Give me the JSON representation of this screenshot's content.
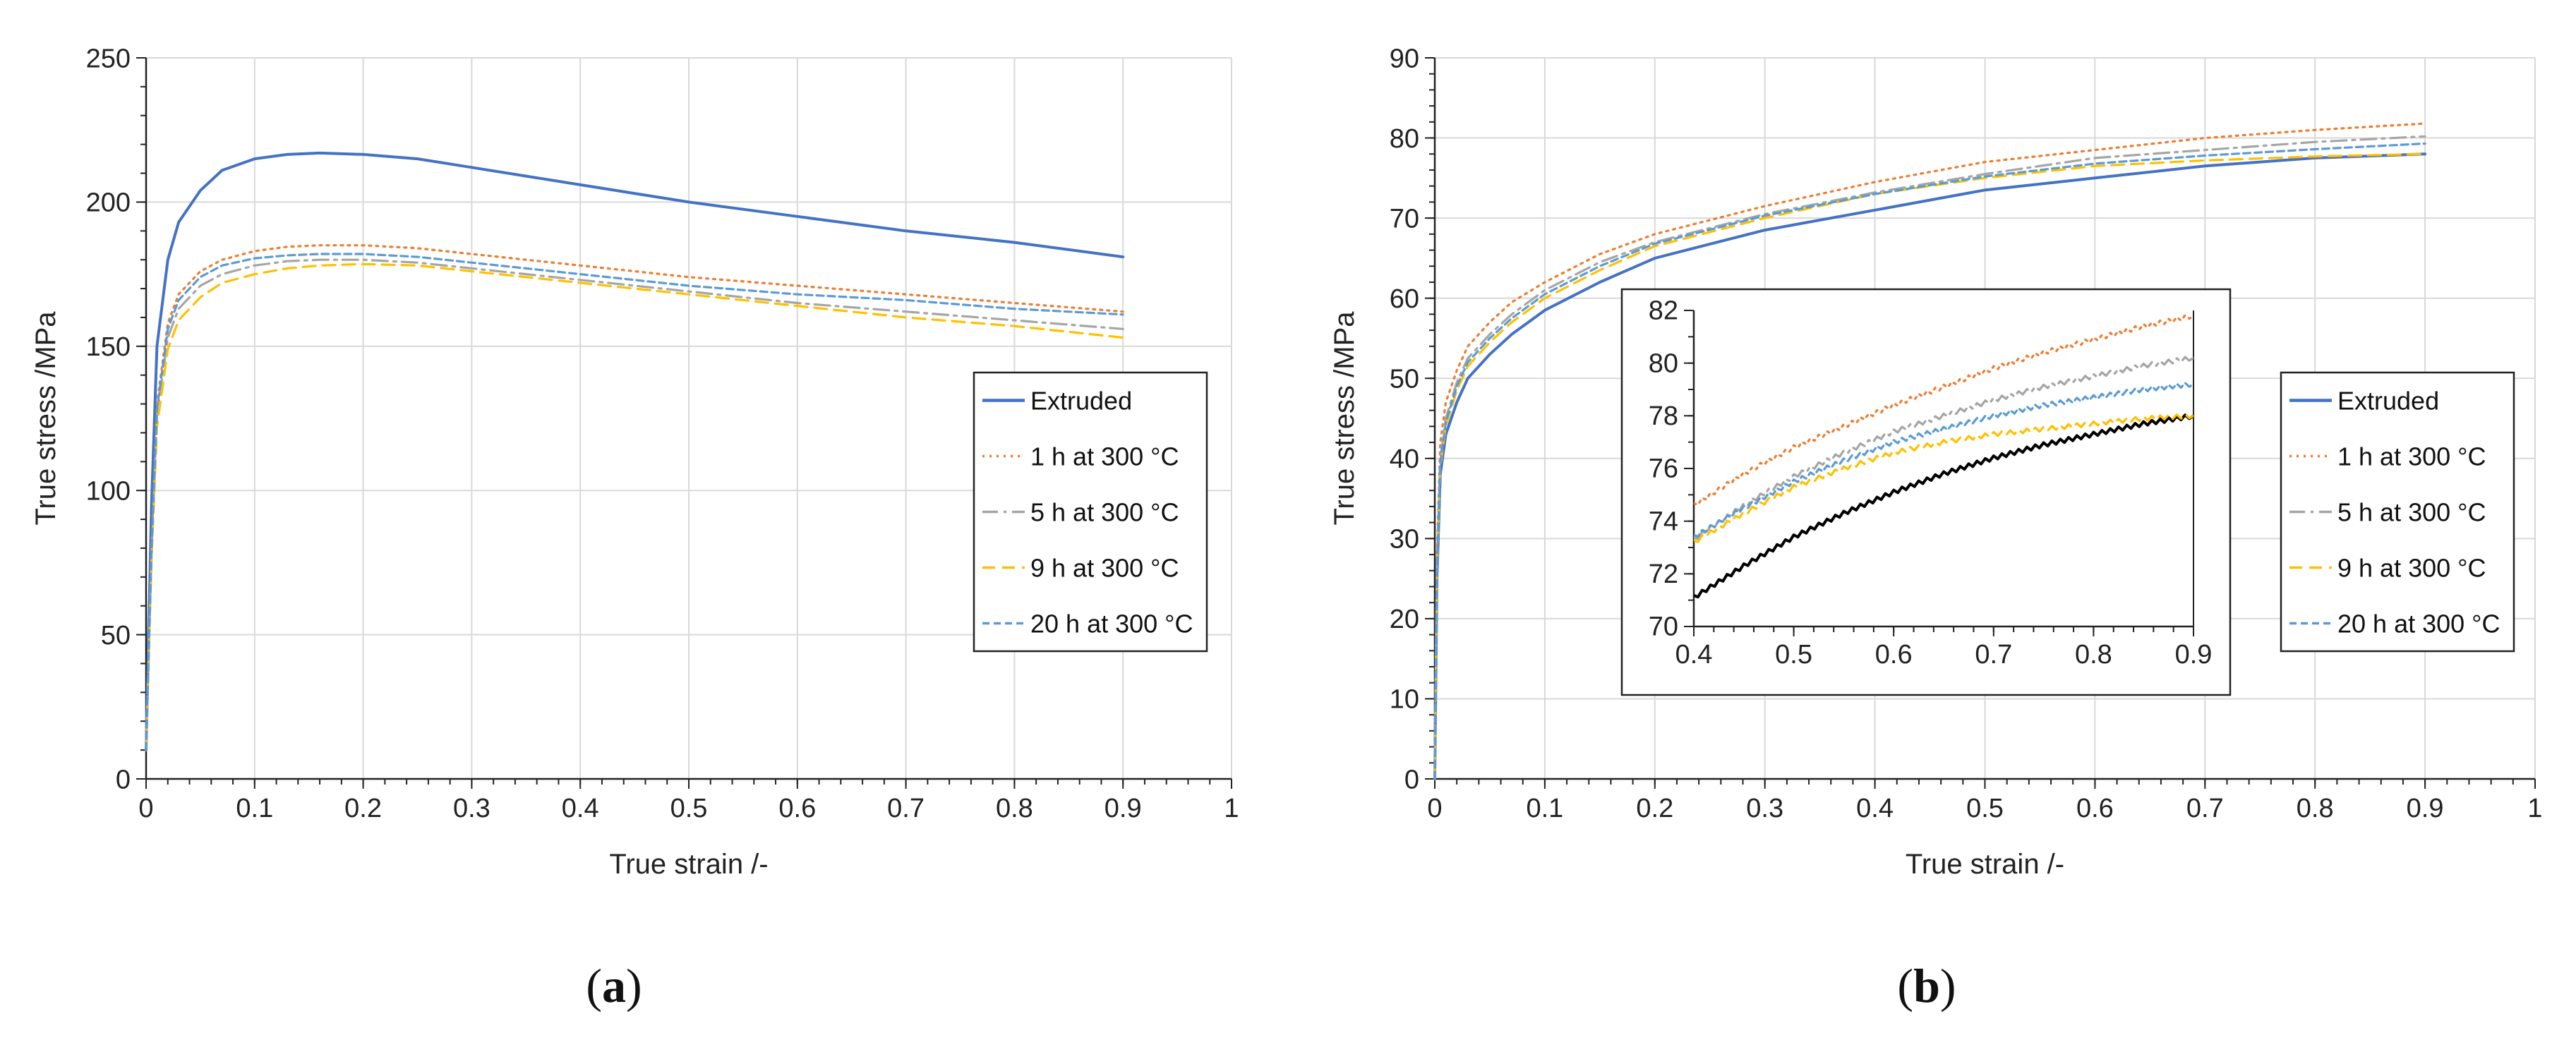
{
  "colors": {
    "extruded": "#4472c4",
    "h1": "#ed7d31",
    "h5": "#a5a5a5",
    "h9": "#ffc000",
    "h20": "#5b9bd5",
    "inset_extruded": "#000000",
    "grid": "#d9d9d9",
    "axis": "#222222"
  },
  "chart_data": [
    {
      "id": "a",
      "type": "line",
      "panel_label": "a",
      "xlabel": "True strain /-",
      "ylabel": "True stress /MPa",
      "xlim": [
        0,
        1
      ],
      "ylim": [
        0,
        250
      ],
      "xticks": [
        0,
        0.1,
        0.2,
        0.3,
        0.4,
        0.5,
        0.6,
        0.7,
        0.8,
        0.9,
        1
      ],
      "xtick_labels": [
        "0",
        "0.1",
        "0.2",
        "0.3",
        "0.4",
        "0.5",
        "0.6",
        "0.7",
        "0.8",
        "0.9",
        "1"
      ],
      "yticks": [
        0,
        50,
        100,
        150,
        200,
        250
      ],
      "ytick_labels": [
        "0",
        "50",
        "100",
        "150",
        "200",
        "250"
      ],
      "grid": true,
      "legend_position": "right",
      "series": [
        {
          "key": "extruded",
          "name": "Extruded",
          "style": "solid",
          "x": [
            0,
            0.005,
            0.01,
            0.02,
            0.03,
            0.05,
            0.07,
            0.1,
            0.13,
            0.16,
            0.2,
            0.25,
            0.3,
            0.4,
            0.5,
            0.6,
            0.7,
            0.8,
            0.9
          ],
          "y": [
            10,
            95,
            150,
            180,
            193,
            204,
            211,
            215,
            216.5,
            217,
            216.5,
            215,
            212,
            206,
            200,
            195,
            190,
            186,
            181
          ]
        },
        {
          "key": "h1",
          "name": "1 h at 300 °C",
          "style": "dotted",
          "x": [
            0,
            0.005,
            0.01,
            0.02,
            0.03,
            0.05,
            0.07,
            0.1,
            0.13,
            0.16,
            0.2,
            0.25,
            0.3,
            0.4,
            0.5,
            0.6,
            0.7,
            0.8,
            0.9
          ],
          "y": [
            10,
            80,
            130,
            158,
            168,
            176,
            180,
            183,
            184.5,
            185,
            185,
            184,
            182,
            178,
            174,
            171,
            168,
            165,
            162
          ]
        },
        {
          "key": "h5",
          "name": "5 h at 300 °C",
          "style": "dashdot",
          "x": [
            0,
            0.005,
            0.01,
            0.02,
            0.03,
            0.05,
            0.07,
            0.1,
            0.13,
            0.16,
            0.2,
            0.25,
            0.3,
            0.4,
            0.5,
            0.6,
            0.7,
            0.8,
            0.9
          ],
          "y": [
            10,
            78,
            126,
            153,
            163,
            171,
            175,
            178,
            179.5,
            180,
            180,
            179,
            177,
            173,
            169,
            165,
            162,
            159,
            156
          ]
        },
        {
          "key": "h9",
          "name": "9 h at 300 °C",
          "style": "dashed",
          "x": [
            0,
            0.005,
            0.01,
            0.02,
            0.03,
            0.05,
            0.07,
            0.1,
            0.13,
            0.16,
            0.2,
            0.25,
            0.3,
            0.4,
            0.5,
            0.6,
            0.7,
            0.8,
            0.9
          ],
          "y": [
            10,
            76,
            122,
            149,
            159,
            167,
            172,
            175,
            177,
            178,
            178.5,
            178,
            176,
            172,
            168,
            164,
            160,
            157,
            153
          ]
        },
        {
          "key": "h20",
          "name": "20 h at 300 °C",
          "style": "finedash",
          "x": [
            0,
            0.005,
            0.01,
            0.02,
            0.03,
            0.05,
            0.07,
            0.1,
            0.13,
            0.16,
            0.2,
            0.25,
            0.3,
            0.4,
            0.5,
            0.6,
            0.7,
            0.8,
            0.9
          ],
          "y": [
            10,
            79,
            128,
            156,
            166,
            174,
            178,
            180.5,
            181.5,
            182,
            182,
            181,
            179,
            175,
            171,
            168,
            166,
            163,
            161
          ]
        }
      ]
    },
    {
      "id": "b",
      "type": "line",
      "panel_label": "b",
      "xlabel": "True strain /-",
      "ylabel": "True stress /MPa",
      "xlim": [
        0,
        1
      ],
      "ylim": [
        0,
        90
      ],
      "xticks": [
        0,
        0.1,
        0.2,
        0.3,
        0.4,
        0.5,
        0.6,
        0.7,
        0.8,
        0.9,
        1
      ],
      "xtick_labels": [
        "0",
        "0.1",
        "0.2",
        "0.3",
        "0.4",
        "0.5",
        "0.6",
        "0.7",
        "0.8",
        "0.9",
        "1"
      ],
      "yticks": [
        0,
        10,
        20,
        30,
        40,
        50,
        60,
        70,
        80,
        90
      ],
      "ytick_labels": [
        "0",
        "10",
        "20",
        "30",
        "40",
        "50",
        "60",
        "70",
        "80",
        "90"
      ],
      "grid": true,
      "legend_position": "right",
      "series": [
        {
          "key": "extruded",
          "name": "Extruded",
          "style": "solid",
          "x": [
            0,
            0.002,
            0.005,
            0.01,
            0.02,
            0.03,
            0.05,
            0.07,
            0.1,
            0.15,
            0.2,
            0.3,
            0.4,
            0.5,
            0.6,
            0.7,
            0.8,
            0.9
          ],
          "y": [
            0,
            25,
            38,
            43,
            47,
            50,
            53,
            55.5,
            58.5,
            62,
            65,
            68.5,
            71,
            73.5,
            75,
            76.5,
            77.5,
            78
          ]
        },
        {
          "key": "h1",
          "name": "1 h at 300 °C",
          "style": "dotted",
          "x": [
            0,
            0.002,
            0.005,
            0.01,
            0.02,
            0.03,
            0.05,
            0.07,
            0.1,
            0.15,
            0.2,
            0.3,
            0.4,
            0.5,
            0.6,
            0.7,
            0.8,
            0.9
          ],
          "y": [
            0,
            28,
            42,
            47,
            51,
            54,
            57,
            59.5,
            62,
            65.5,
            68,
            71.5,
            74.5,
            77,
            78.5,
            80,
            81,
            81.8
          ]
        },
        {
          "key": "h5",
          "name": "5 h at 300 °C",
          "style": "dashdot",
          "x": [
            0,
            0.002,
            0.005,
            0.01,
            0.02,
            0.03,
            0.05,
            0.07,
            0.1,
            0.15,
            0.2,
            0.3,
            0.4,
            0.5,
            0.6,
            0.7,
            0.8,
            0.9
          ],
          "y": [
            0,
            27,
            40,
            45,
            49.5,
            52.5,
            55.5,
            58,
            61,
            64.5,
            67,
            70.5,
            73.2,
            75.5,
            77.5,
            78.5,
            79.5,
            80.2
          ]
        },
        {
          "key": "h9",
          "name": "9 h at 300 °C",
          "style": "dashed",
          "x": [
            0,
            0.002,
            0.005,
            0.01,
            0.02,
            0.03,
            0.05,
            0.07,
            0.1,
            0.15,
            0.2,
            0.3,
            0.4,
            0.5,
            0.6,
            0.7,
            0.8,
            0.9
          ],
          "y": [
            0,
            26,
            39,
            44,
            48.5,
            51.5,
            54.5,
            57,
            60,
            63.5,
            66.5,
            70,
            73,
            75,
            76.5,
            77.2,
            77.7,
            78
          ]
        },
        {
          "key": "h20",
          "name": "20 h at 300 °C",
          "style": "finedash",
          "x": [
            0,
            0.002,
            0.005,
            0.01,
            0.02,
            0.03,
            0.05,
            0.07,
            0.1,
            0.15,
            0.2,
            0.3,
            0.4,
            0.5,
            0.6,
            0.7,
            0.8,
            0.9
          ],
          "y": [
            0,
            26.5,
            39.5,
            44.5,
            49,
            52,
            55,
            57.5,
            60.5,
            64,
            66.8,
            70.3,
            73,
            75.2,
            76.8,
            77.8,
            78.6,
            79.3
          ]
        }
      ],
      "inset": {
        "xlim": [
          0.4,
          0.9
        ],
        "ylim": [
          70,
          82
        ],
        "xticks": [
          0.4,
          0.5,
          0.6,
          0.7,
          0.8,
          0.9
        ],
        "xtick_labels": [
          "0.4",
          "0.5",
          "0.6",
          "0.7",
          "0.8",
          "0.9"
        ],
        "yticks": [
          70,
          72,
          74,
          76,
          78,
          80,
          82
        ],
        "ytick_labels": [
          "70",
          "72",
          "74",
          "76",
          "78",
          "80",
          "82"
        ],
        "series": [
          {
            "key": "extruded",
            "name": "Extruded",
            "style": "solid",
            "x": [
              0.4,
              0.45,
              0.5,
              0.55,
              0.6,
              0.65,
              0.7,
              0.75,
              0.8,
              0.85,
              0.9
            ],
            "y": [
              71.1,
              72.3,
              73.4,
              74.3,
              75.1,
              75.8,
              76.4,
              76.9,
              77.3,
              77.7,
              78
            ]
          },
          {
            "key": "h1",
            "name": "1 h at 300 °C",
            "style": "dotted",
            "x": [
              0.4,
              0.45,
              0.5,
              0.55,
              0.6,
              0.65,
              0.7,
              0.75,
              0.8,
              0.85,
              0.9
            ],
            "y": [
              74.6,
              75.8,
              76.8,
              77.6,
              78.4,
              79.1,
              79.8,
              80.4,
              80.9,
              81.4,
              81.8
            ]
          },
          {
            "key": "h5",
            "name": "5 h at 300 °C",
            "style": "dashdot",
            "x": [
              0.4,
              0.45,
              0.5,
              0.55,
              0.6,
              0.65,
              0.7,
              0.75,
              0.8,
              0.85,
              0.9
            ],
            "y": [
              73.3,
              74.6,
              75.7,
              76.6,
              77.4,
              78.0,
              78.6,
              79.1,
              79.5,
              79.9,
              80.2
            ]
          },
          {
            "key": "h9",
            "name": "9 h at 300 °C",
            "style": "dashed",
            "x": [
              0.4,
              0.45,
              0.5,
              0.55,
              0.6,
              0.65,
              0.7,
              0.75,
              0.8,
              0.85,
              0.9
            ],
            "y": [
              73.2,
              74.3,
              75.3,
              76.0,
              76.6,
              77.0,
              77.3,
              77.5,
              77.7,
              77.9,
              78.0
            ]
          },
          {
            "key": "h20",
            "name": "20 h at 300 °C",
            "style": "finedash",
            "x": [
              0.4,
              0.45,
              0.5,
              0.55,
              0.6,
              0.65,
              0.7,
              0.75,
              0.8,
              0.85,
              0.9
            ],
            "y": [
              73.4,
              74.5,
              75.5,
              76.3,
              77.0,
              77.5,
              78.0,
              78.4,
              78.7,
              79.0,
              79.2
            ]
          }
        ]
      }
    }
  ]
}
